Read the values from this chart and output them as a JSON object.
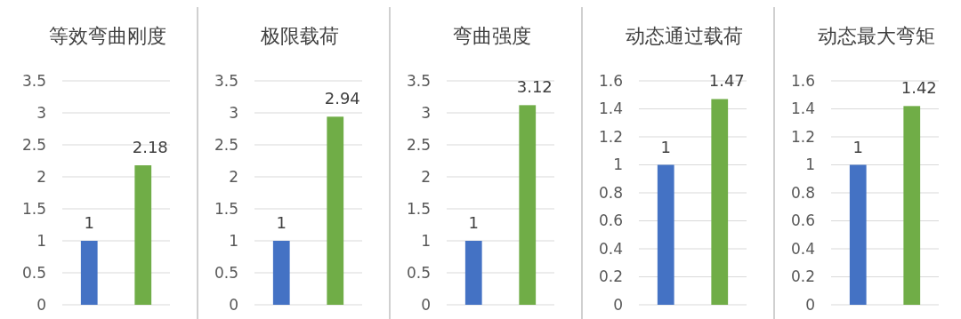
{
  "chart_data": [
    {
      "type": "bar",
      "title": "等效弯曲刚度",
      "categories": [
        null,
        null
      ],
      "values": [
        1,
        2.18
      ],
      "colors": [
        "#4472c4",
        "#70ad47"
      ],
      "ylim": [
        0,
        3.5
      ],
      "yticks": [
        0,
        0.5,
        1,
        1.5,
        2,
        2.5,
        3,
        3.5
      ],
      "grid": "y",
      "data_labels": true
    },
    {
      "type": "bar",
      "title": "极限载荷",
      "categories": [
        null,
        null
      ],
      "values": [
        1,
        2.94
      ],
      "colors": [
        "#4472c4",
        "#70ad47"
      ],
      "ylim": [
        0,
        3.5
      ],
      "yticks": [
        0,
        0.5,
        1,
        1.5,
        2,
        2.5,
        3,
        3.5
      ],
      "grid": "y",
      "data_labels": true
    },
    {
      "type": "bar",
      "title": "弯曲强度",
      "categories": [
        null,
        null
      ],
      "values": [
        1,
        3.12
      ],
      "colors": [
        "#4472c4",
        "#70ad47"
      ],
      "ylim": [
        0,
        3.5
      ],
      "yticks": [
        0,
        0.5,
        1,
        1.5,
        2,
        2.5,
        3,
        3.5
      ],
      "grid": "y",
      "data_labels": true
    },
    {
      "type": "bar",
      "title": "动态通过载荷",
      "categories": [
        null,
        null
      ],
      "values": [
        1,
        1.47
      ],
      "colors": [
        "#4472c4",
        "#70ad47"
      ],
      "ylim": [
        0,
        1.6
      ],
      "yticks": [
        0,
        0.2,
        0.4,
        0.6,
        0.8,
        1,
        1.2,
        1.4,
        1.6
      ],
      "grid": "y",
      "data_labels": true
    },
    {
      "type": "bar",
      "title": "动态最大弯矩",
      "categories": [
        null,
        null
      ],
      "values": [
        1,
        1.42
      ],
      "colors": [
        "#4472c4",
        "#70ad47"
      ],
      "ylim": [
        0,
        1.6
      ],
      "yticks": [
        0,
        0.2,
        0.4,
        0.6,
        0.8,
        1,
        1.2,
        1.4,
        1.6
      ],
      "grid": "y",
      "data_labels": true
    }
  ]
}
